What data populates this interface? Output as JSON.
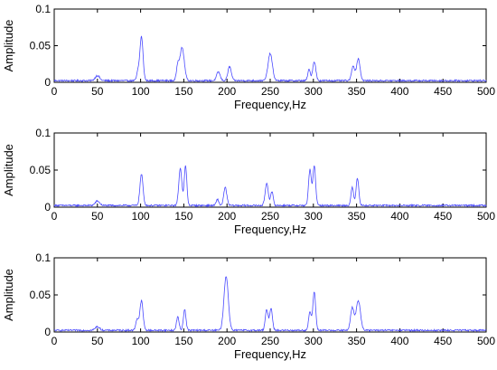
{
  "chart_data": [
    {
      "type": "line",
      "xlabel": "Frequency,Hz",
      "ylabel": "Amplitude",
      "xlim": [
        0,
        500
      ],
      "ylim": [
        0,
        0.1
      ],
      "xticks": [
        0,
        50,
        100,
        150,
        200,
        250,
        300,
        350,
        400,
        450,
        500
      ],
      "xtick_labels": [
        "0",
        "50",
        "100",
        "150",
        "200",
        "250",
        "300",
        "350",
        "400",
        "450",
        "500"
      ],
      "yticks": [
        0,
        0.05,
        0.1
      ],
      "ytick_labels": [
        "0",
        "0.05",
        "0.1"
      ],
      "grid": false,
      "color": "#4a4aff",
      "peaks": [
        {
          "x": 50,
          "y": 0.007,
          "w": 2.5
        },
        {
          "x": 97,
          "y": 0.012,
          "w": 1.5
        },
        {
          "x": 101,
          "y": 0.06,
          "w": 1.8
        },
        {
          "x": 143,
          "y": 0.02,
          "w": 1.5
        },
        {
          "x": 148,
          "y": 0.045,
          "w": 2.5
        },
        {
          "x": 190,
          "y": 0.012,
          "w": 2.0
        },
        {
          "x": 203,
          "y": 0.019,
          "w": 2.0
        },
        {
          "x": 250,
          "y": 0.037,
          "w": 2.5
        },
        {
          "x": 295,
          "y": 0.015,
          "w": 1.5
        },
        {
          "x": 301,
          "y": 0.026,
          "w": 1.8
        },
        {
          "x": 346,
          "y": 0.02,
          "w": 1.8
        },
        {
          "x": 352,
          "y": 0.03,
          "w": 2.0
        }
      ]
    },
    {
      "type": "line",
      "xlabel": "Frequency,Hz",
      "ylabel": "Amplitude",
      "xlim": [
        0,
        500
      ],
      "ylim": [
        0,
        0.1
      ],
      "xticks": [
        0,
        50,
        100,
        150,
        200,
        250,
        300,
        350,
        400,
        450,
        500
      ],
      "xtick_labels": [
        "0",
        "50",
        "100",
        "150",
        "200",
        "250",
        "300",
        "350",
        "400",
        "450",
        "500"
      ],
      "yticks": [
        0,
        0.05,
        0.1
      ],
      "ytick_labels": [
        "0",
        "0.05",
        "0.1"
      ],
      "grid": false,
      "color": "#4a4aff",
      "peaks": [
        {
          "x": 50,
          "y": 0.006,
          "w": 2.5
        },
        {
          "x": 101,
          "y": 0.042,
          "w": 1.8
        },
        {
          "x": 146,
          "y": 0.05,
          "w": 1.8
        },
        {
          "x": 152,
          "y": 0.053,
          "w": 1.5
        },
        {
          "x": 189,
          "y": 0.008,
          "w": 1.5
        },
        {
          "x": 198,
          "y": 0.024,
          "w": 1.8
        },
        {
          "x": 246,
          "y": 0.03,
          "w": 1.8
        },
        {
          "x": 252,
          "y": 0.018,
          "w": 1.5
        },
        {
          "x": 296,
          "y": 0.048,
          "w": 1.6
        },
        {
          "x": 301,
          "y": 0.053,
          "w": 1.6
        },
        {
          "x": 345,
          "y": 0.024,
          "w": 1.5
        },
        {
          "x": 351,
          "y": 0.037,
          "w": 1.6
        }
      ]
    },
    {
      "type": "line",
      "xlabel": "Frequency,Hz",
      "ylabel": "Amplitude",
      "xlim": [
        0,
        500
      ],
      "ylim": [
        0,
        0.1
      ],
      "xticks": [
        0,
        50,
        100,
        150,
        200,
        250,
        300,
        350,
        400,
        450,
        500
      ],
      "xtick_labels": [
        "0",
        "50",
        "100",
        "150",
        "200",
        "250",
        "300",
        "350",
        "400",
        "450",
        "500"
      ],
      "yticks": [
        0,
        0.05,
        0.1
      ],
      "ytick_labels": [
        "0",
        "0.05",
        "0.1"
      ],
      "grid": false,
      "color": "#4a4aff",
      "peaks": [
        {
          "x": 50,
          "y": 0.005,
          "w": 2.5
        },
        {
          "x": 96,
          "y": 0.015,
          "w": 1.6
        },
        {
          "x": 101,
          "y": 0.04,
          "w": 1.8
        },
        {
          "x": 143,
          "y": 0.018,
          "w": 1.5
        },
        {
          "x": 151,
          "y": 0.028,
          "w": 1.5
        },
        {
          "x": 199,
          "y": 0.073,
          "w": 2.5
        },
        {
          "x": 246,
          "y": 0.028,
          "w": 1.6
        },
        {
          "x": 251,
          "y": 0.03,
          "w": 1.6
        },
        {
          "x": 296,
          "y": 0.025,
          "w": 1.5
        },
        {
          "x": 301,
          "y": 0.052,
          "w": 1.6
        },
        {
          "x": 345,
          "y": 0.03,
          "w": 2.0
        },
        {
          "x": 352,
          "y": 0.04,
          "w": 2.5
        }
      ]
    }
  ]
}
